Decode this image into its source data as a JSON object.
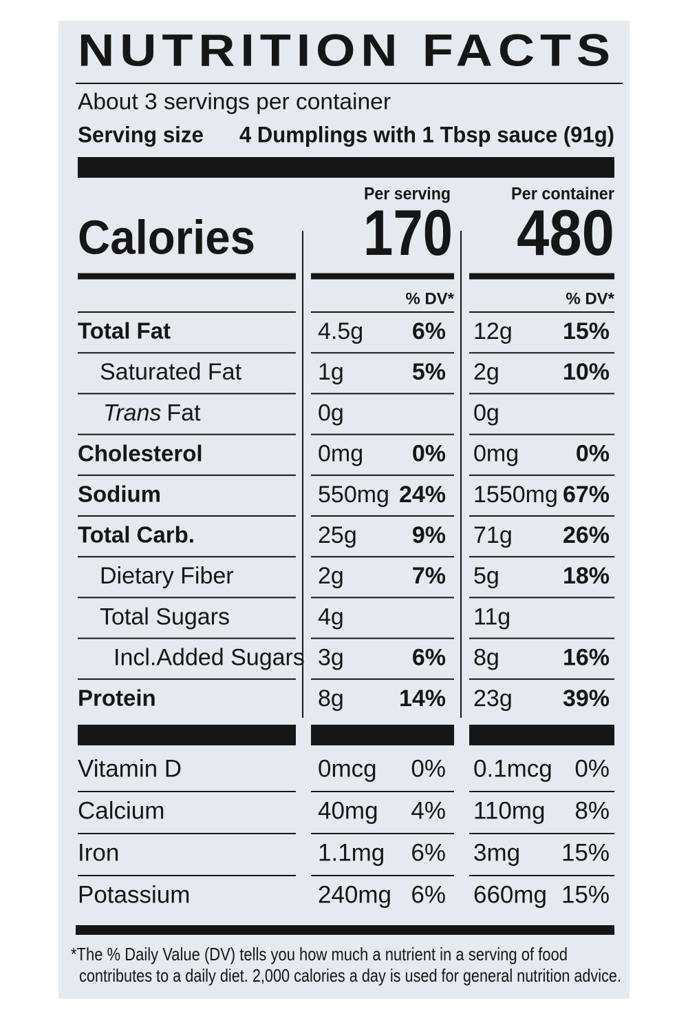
{
  "title": "NUTRITION FACTS",
  "servings": "About 3 servings per container",
  "serving_size": {
    "label": "Serving size",
    "value": "4 Dumplings with 1 Tbsp sauce (91g)"
  },
  "columns": [
    "Per serving",
    "Per container"
  ],
  "calories": {
    "label": "Calories",
    "values": [
      "170",
      "480"
    ]
  },
  "dv_header": "% DV*",
  "nutrients": [
    {
      "label": "Total Fat",
      "bold": true,
      "indent": 0,
      "serving": {
        "amount": "4.5g",
        "dv": "6%"
      },
      "container": {
        "amount": "12g",
        "dv": "15%"
      }
    },
    {
      "label": "Saturated Fat",
      "bold": false,
      "indent": 1,
      "serving": {
        "amount": "1g",
        "dv": "5%"
      },
      "container": {
        "amount": "2g",
        "dv": "10%"
      }
    },
    {
      "label_italic": "Trans",
      "label": "Fat",
      "bold": false,
      "indent": 1,
      "serving": {
        "amount": "0g"
      },
      "container": {
        "amount": "0g"
      }
    },
    {
      "label": "Cholesterol",
      "bold": true,
      "indent": 0,
      "serving": {
        "amount": "0mg",
        "dv": "0%"
      },
      "container": {
        "amount": "0mg",
        "dv": "0%"
      }
    },
    {
      "label": "Sodium",
      "bold": true,
      "indent": 0,
      "serving": {
        "amount": "550mg",
        "dv": "24%"
      },
      "container": {
        "amount": "1550mg",
        "dv": "67%"
      }
    },
    {
      "label": "Total Carb.",
      "bold": true,
      "indent": 0,
      "serving": {
        "amount": "25g",
        "dv": "9%"
      },
      "container": {
        "amount": "71g",
        "dv": "26%"
      }
    },
    {
      "label": "Dietary Fiber",
      "bold": false,
      "indent": 1,
      "serving": {
        "amount": "2g",
        "dv": "7%"
      },
      "container": {
        "amount": "5g",
        "dv": "18%"
      }
    },
    {
      "label": "Total Sugars",
      "bold": false,
      "indent": 1,
      "serving": {
        "amount": "4g"
      },
      "container": {
        "amount": "11g"
      }
    },
    {
      "label": "Incl.Added Sugars",
      "bold": false,
      "indent": 2,
      "serving": {
        "amount": "3g",
        "dv": "6%"
      },
      "container": {
        "amount": "8g",
        "dv": "16%"
      }
    },
    {
      "label": "Protein",
      "bold": true,
      "indent": 0,
      "serving": {
        "amount": "8g",
        "dv": "14%"
      },
      "container": {
        "amount": "23g",
        "dv": "39%"
      }
    }
  ],
  "vitamins": [
    {
      "label": "Vitamin D",
      "serving": {
        "amount": "0mcg",
        "dv": "0%"
      },
      "container": {
        "amount": "0.1mcg",
        "dv": "0%"
      }
    },
    {
      "label": "Calcium",
      "serving": {
        "amount": "40mg",
        "dv": "4%"
      },
      "container": {
        "amount": "110mg",
        "dv": "8%"
      }
    },
    {
      "label": "Iron",
      "serving": {
        "amount": "1.1mg",
        "dv": "6%"
      },
      "container": {
        "amount": "3mg",
        "dv": "15%"
      }
    },
    {
      "label": "Potassium",
      "serving": {
        "amount": "240mg",
        "dv": "6%"
      },
      "container": {
        "amount": "660mg",
        "dv": "15%"
      }
    }
  ],
  "footnote": [
    "*The % Daily Value (DV) tells you how much a nutrient in a serving of food",
    "contributes to a daily diet. 2,000 calories a day is used for general nutrition advice."
  ]
}
